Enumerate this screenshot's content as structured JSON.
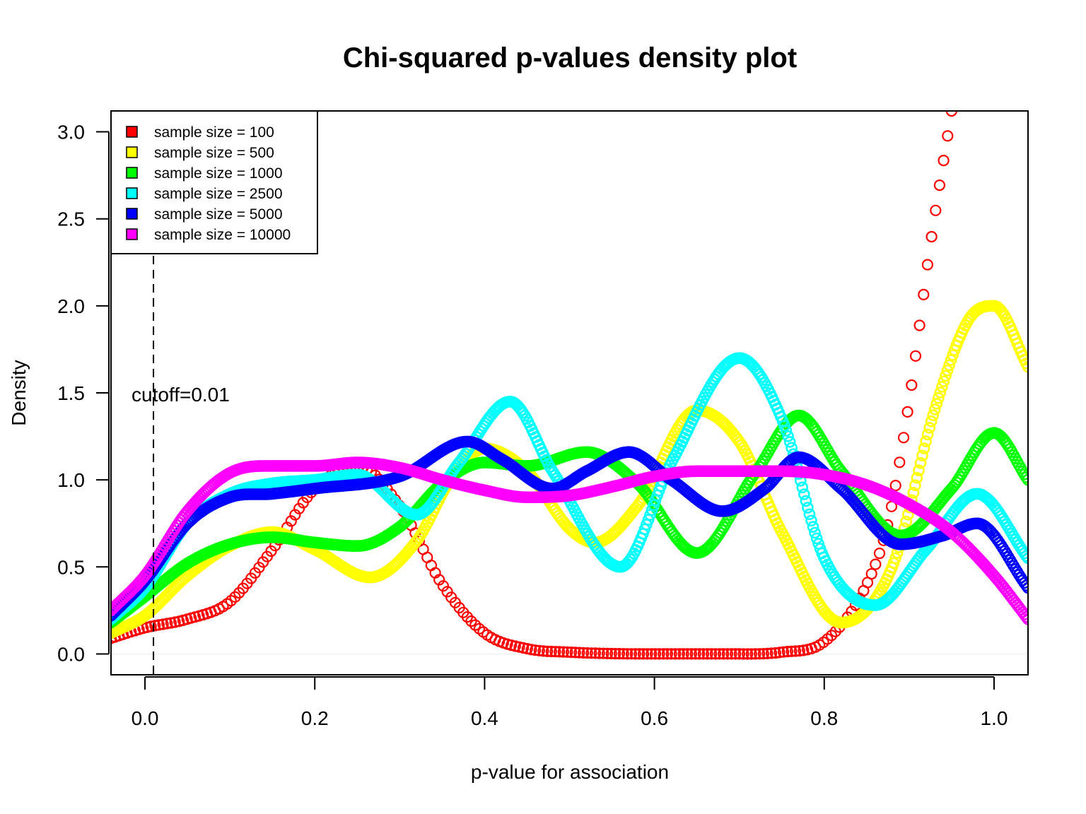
{
  "chart_data": {
    "type": "scatter",
    "title": "Chi-squared p-values density plot",
    "xlabel": "p-value for association",
    "ylabel": "Density",
    "xlim": [
      -0.04,
      1.04
    ],
    "ylim": [
      -0.12,
      3.12
    ],
    "x_ticks": [
      "0.0",
      "0.2",
      "0.4",
      "0.6",
      "0.8",
      "1.0"
    ],
    "x_tick_values": [
      0.0,
      0.2,
      0.4,
      0.6,
      0.8,
      1.0
    ],
    "y_ticks": [
      "0.0",
      "0.5",
      "1.0",
      "1.5",
      "2.0",
      "2.5",
      "3.0"
    ],
    "y_tick_values": [
      0.0,
      0.5,
      1.0,
      1.5,
      2.0,
      2.5,
      3.0
    ],
    "legend_position": "top-left",
    "grid": false,
    "marker": "open-circle",
    "annotation": {
      "text": "cutoff=0.01",
      "x": 0.01,
      "line": "dashed-vertical"
    },
    "series": [
      {
        "name": "sample size = 100",
        "color": "#FF0000",
        "x": [
          -0.04,
          0.0,
          0.05,
          0.1,
          0.15,
          0.2,
          0.25,
          0.3,
          0.35,
          0.4,
          0.45,
          0.5,
          0.6,
          0.7,
          0.75,
          0.8,
          0.85,
          0.875,
          0.9,
          0.925,
          0.95
        ],
        "values": [
          0.09,
          0.15,
          0.2,
          0.3,
          0.6,
          0.95,
          1.08,
          0.85,
          0.4,
          0.12,
          0.03,
          0.01,
          0.0,
          0.0,
          0.01,
          0.07,
          0.4,
          0.75,
          1.45,
          2.35,
          3.12
        ]
      },
      {
        "name": "sample size = 500",
        "color": "#FFFF00",
        "x": [
          -0.04,
          0.0,
          0.05,
          0.1,
          0.15,
          0.2,
          0.265,
          0.32,
          0.36,
          0.4,
          0.45,
          0.5,
          0.53,
          0.58,
          0.65,
          0.7,
          0.75,
          0.82,
          0.88,
          0.93,
          0.97,
          1.0,
          1.04
        ],
        "values": [
          0.12,
          0.22,
          0.45,
          0.62,
          0.7,
          0.6,
          0.44,
          0.65,
          1.0,
          1.18,
          1.05,
          0.72,
          0.64,
          0.85,
          1.4,
          1.22,
          0.7,
          0.18,
          0.5,
          1.4,
          1.92,
          2.0,
          1.65
        ]
      },
      {
        "name": "sample size = 1000",
        "color": "#00FF00",
        "x": [
          -0.04,
          0.0,
          0.05,
          0.1,
          0.15,
          0.2,
          0.25,
          0.3,
          0.35,
          0.4,
          0.45,
          0.52,
          0.58,
          0.65,
          0.72,
          0.77,
          0.82,
          0.89,
          0.95,
          1.0,
          1.04
        ],
        "values": [
          0.18,
          0.33,
          0.52,
          0.63,
          0.67,
          0.64,
          0.62,
          0.73,
          0.98,
          1.1,
          1.08,
          1.16,
          0.98,
          0.58,
          1.05,
          1.37,
          1.05,
          0.68,
          0.95,
          1.27,
          1.0
        ]
      },
      {
        "name": "sample size = 2500",
        "color": "#00FFFF",
        "x": [
          -0.04,
          0.0,
          0.05,
          0.1,
          0.15,
          0.2,
          0.25,
          0.32,
          0.37,
          0.43,
          0.48,
          0.56,
          0.62,
          0.7,
          0.75,
          0.8,
          0.86,
          0.92,
          0.98,
          1.04
        ],
        "values": [
          0.2,
          0.38,
          0.75,
          0.92,
          0.98,
          1.0,
          1.03,
          0.8,
          1.1,
          1.45,
          1.05,
          0.5,
          1.1,
          1.7,
          1.35,
          0.55,
          0.28,
          0.6,
          0.92,
          0.55
        ]
      },
      {
        "name": "sample size = 5000",
        "color": "#0000FF",
        "x": [
          -0.04,
          0.0,
          0.05,
          0.1,
          0.15,
          0.2,
          0.3,
          0.38,
          0.42,
          0.48,
          0.52,
          0.57,
          0.62,
          0.68,
          0.73,
          0.77,
          0.82,
          0.89,
          0.94,
          0.98,
          1.04
        ],
        "values": [
          0.22,
          0.42,
          0.75,
          0.9,
          0.92,
          0.95,
          1.02,
          1.22,
          1.12,
          0.95,
          1.05,
          1.16,
          1.0,
          0.82,
          0.95,
          1.13,
          0.95,
          0.63,
          0.68,
          0.75,
          0.38
        ]
      },
      {
        "name": "sample size = 10000",
        "color": "#FF00FF",
        "x": [
          -0.04,
          0.0,
          0.05,
          0.1,
          0.15,
          0.2,
          0.25,
          0.3,
          0.35,
          0.4,
          0.45,
          0.5,
          0.55,
          0.6,
          0.65,
          0.7,
          0.75,
          0.8,
          0.85,
          0.9,
          0.95,
          1.0,
          1.04
        ],
        "values": [
          0.25,
          0.45,
          0.82,
          1.04,
          1.08,
          1.08,
          1.1,
          1.07,
          1.0,
          0.94,
          0.9,
          0.91,
          0.96,
          1.02,
          1.05,
          1.05,
          1.05,
          1.03,
          0.97,
          0.86,
          0.7,
          0.45,
          0.2
        ]
      }
    ]
  }
}
